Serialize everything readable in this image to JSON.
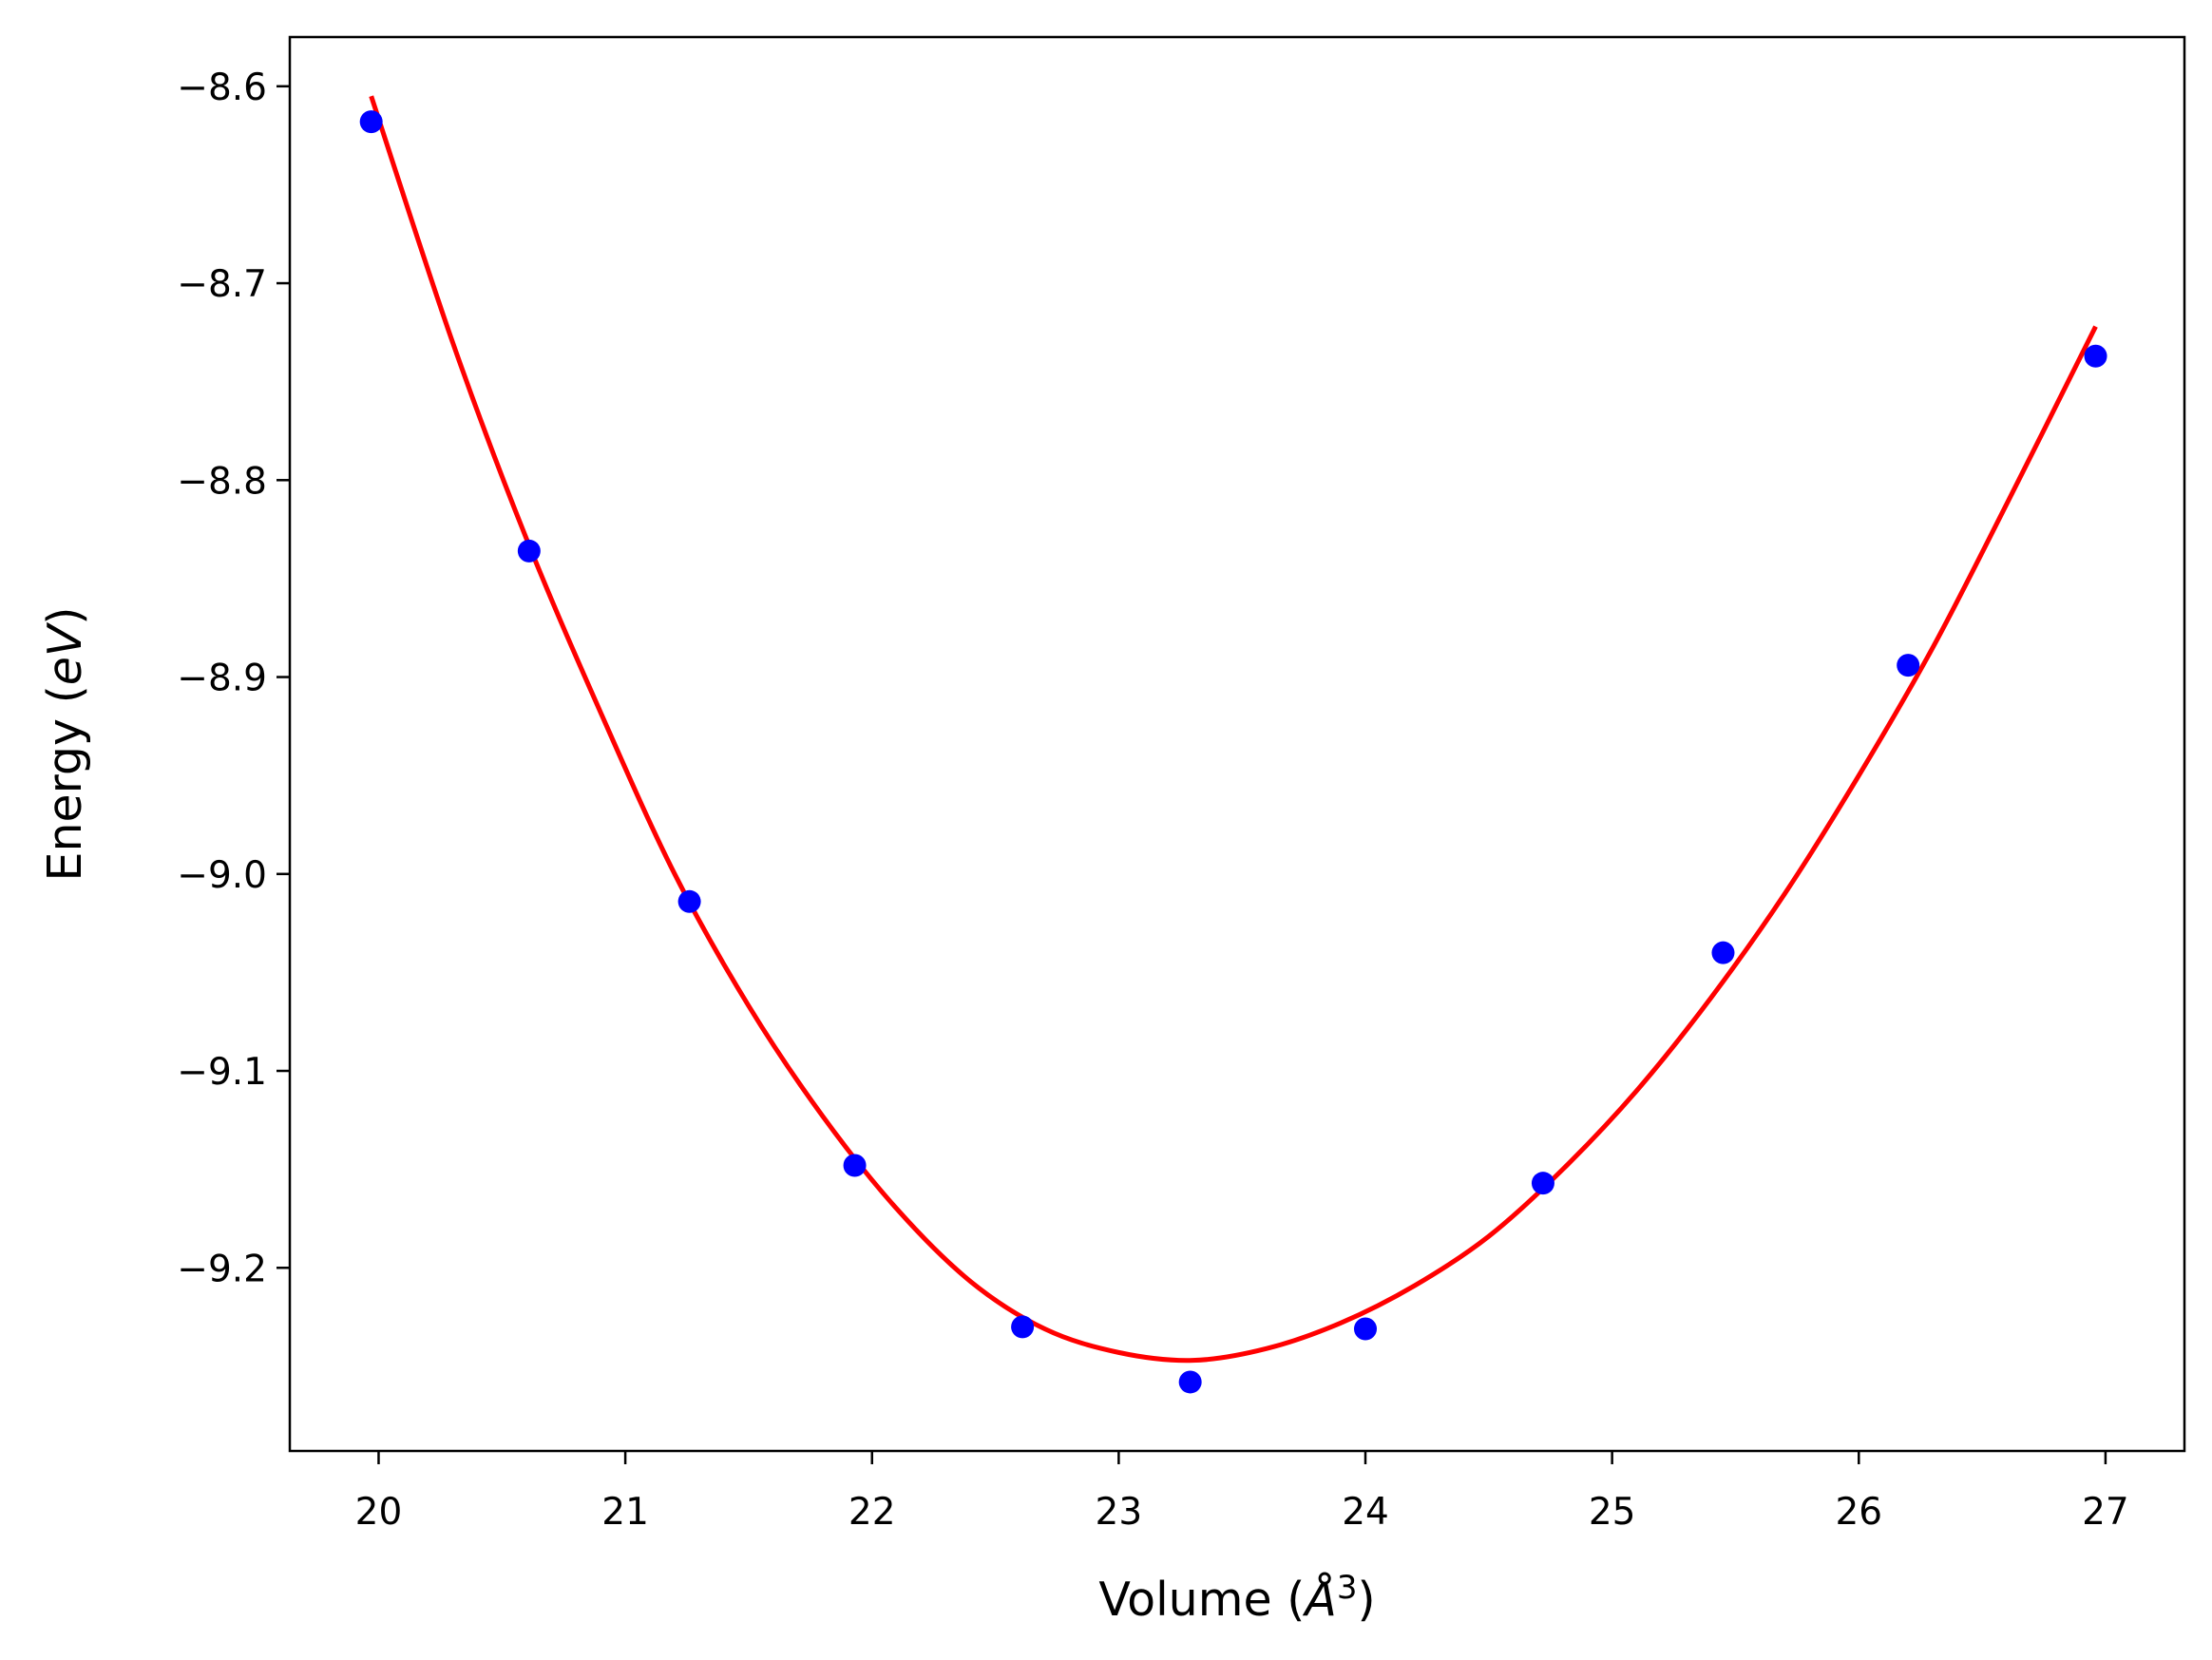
{
  "chart_data": {
    "type": "scatter",
    "xlabel": {
      "prefix": "Volume (",
      "italic": "Å",
      "sup": "3",
      "suffix": ")"
    },
    "ylabel": {
      "prefix": "Energy (",
      "italic": "eV",
      "suffix": ")"
    },
    "xlim": [
      19.64,
      27.32
    ],
    "ylim": [
      -9.293,
      -8.575
    ],
    "xticks": [
      20,
      21,
      22,
      23,
      24,
      25,
      26,
      27
    ],
    "xtick_labels": [
      "20",
      "21",
      "22",
      "23",
      "24",
      "25",
      "26",
      "27"
    ],
    "yticks": [
      -8.6,
      -8.7,
      -8.8,
      -8.9,
      -9.0,
      -9.1,
      -9.2
    ],
    "ytick_labels": [
      "−8.6",
      "−8.7",
      "−8.8",
      "−8.9",
      "−9.0",
      "−9.1",
      "−9.2"
    ],
    "grid": false,
    "series": [
      {
        "type": "scatter",
        "color": "#0000ff",
        "x": [
          19.97,
          20.61,
          21.26,
          21.93,
          22.61,
          23.29,
          24.0,
          24.72,
          25.45,
          26.2,
          26.96
        ],
        "y": [
          -8.618,
          -8.836,
          -9.014,
          -9.148,
          -9.23,
          -9.258,
          -9.231,
          -9.157,
          -9.04,
          -8.894,
          -8.737
        ]
      },
      {
        "type": "line",
        "color": "#ff0000",
        "x": [
          19.97,
          20.3,
          20.6,
          20.9,
          21.2,
          21.5,
          21.8,
          22.1,
          22.4,
          22.7,
          23.0,
          23.3,
          23.6,
          23.9,
          24.2,
          24.5,
          24.8,
          25.1,
          25.4,
          25.7,
          26.0,
          26.3,
          26.6,
          26.96
        ],
        "y": [
          -8.605,
          -8.73,
          -8.83,
          -8.918,
          -9.0,
          -9.067,
          -9.123,
          -9.17,
          -9.207,
          -9.231,
          -9.243,
          -9.247,
          -9.241,
          -9.228,
          -9.209,
          -9.184,
          -9.15,
          -9.11,
          -9.063,
          -9.01,
          -8.95,
          -8.885,
          -8.812,
          -8.722
        ]
      }
    ]
  }
}
